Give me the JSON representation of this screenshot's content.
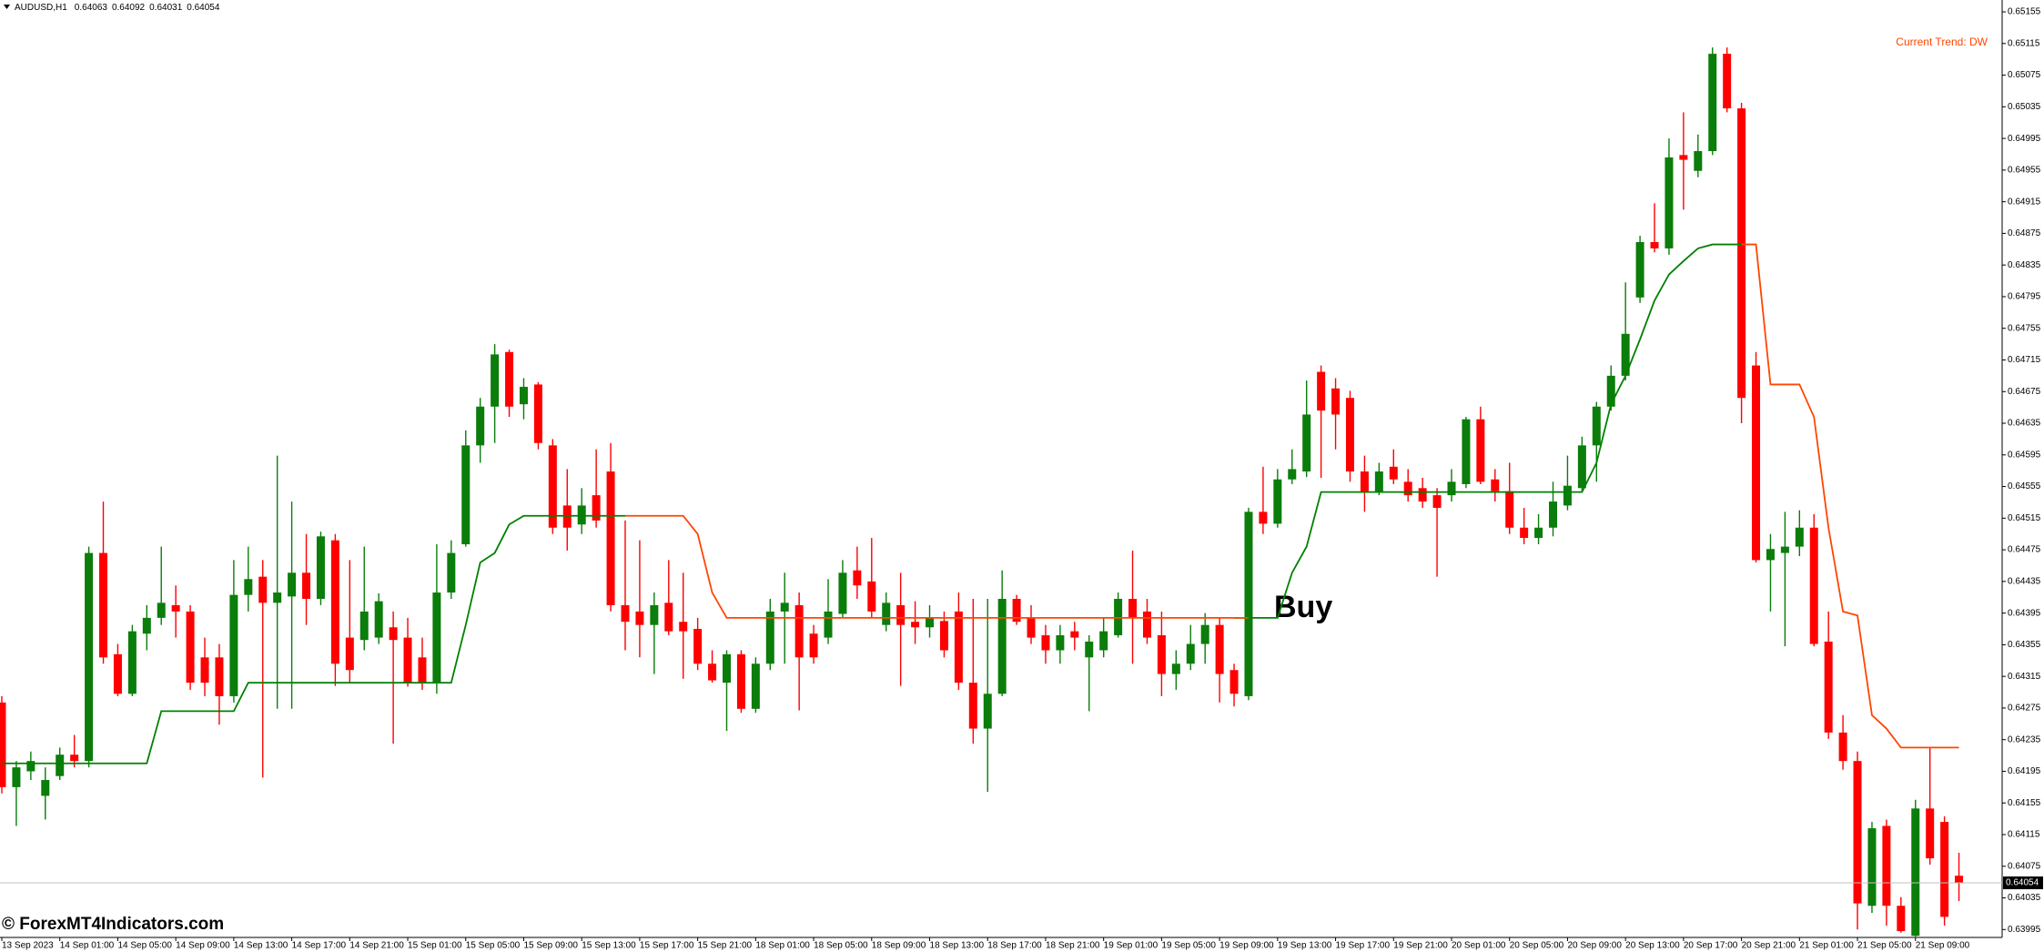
{
  "chart_data": {
    "type": "candlestick",
    "symbol": "AUDUSD,H1",
    "header_ohlc": [
      0.64063,
      0.64092,
      0.64031,
      0.64054
    ],
    "trend_annotation": "Current Trend: DW",
    "signal_annotation": "Buy",
    "watermark": "© ForexMT4Indicators.com",
    "current_price": 0.64054,
    "up_color": "#0a7d0a",
    "down_color": "#ff0000",
    "ylim": [
      0.63985,
      0.6517
    ],
    "yticks": [
      0.65155,
      0.65115,
      0.65075,
      0.65035,
      0.64995,
      0.64955,
      0.64915,
      0.64875,
      0.64835,
      0.64795,
      0.64755,
      0.64715,
      0.64675,
      0.64635,
      0.64595,
      0.64555,
      0.64515,
      0.64475,
      0.64435,
      0.64395,
      0.64355,
      0.64315,
      0.64275,
      0.64235,
      0.64195,
      0.64155,
      0.64115,
      0.64075,
      0.64035,
      0.63995
    ],
    "categories": [
      "13 Sep 2023",
      null,
      null,
      null,
      "14 Sep 01:00",
      null,
      null,
      null,
      "14 Sep 05:00",
      null,
      null,
      null,
      "14 Sep 09:00",
      null,
      null,
      null,
      "14 Sep 13:00",
      null,
      null,
      null,
      "14 Sep 17:00",
      null,
      null,
      null,
      "14 Sep 21:00",
      null,
      null,
      null,
      "15 Sep 01:00",
      null,
      null,
      null,
      "15 Sep 05:00",
      null,
      null,
      null,
      "15 Sep 09:00",
      null,
      null,
      null,
      "15 Sep 13:00",
      null,
      null,
      null,
      "15 Sep 17:00",
      null,
      null,
      null,
      "15 Sep 21:00",
      null,
      null,
      null,
      "18 Sep 01:00",
      null,
      null,
      null,
      "18 Sep 05:00",
      null,
      null,
      null,
      "18 Sep 09:00",
      null,
      null,
      null,
      "18 Sep 13:00",
      null,
      null,
      null,
      "18 Sep 17:00",
      null,
      null,
      null,
      "18 Sep 21:00",
      null,
      null,
      null,
      "19 Sep 01:00",
      null,
      null,
      null,
      "19 Sep 05:00",
      null,
      null,
      null,
      "19 Sep 09:00",
      null,
      null,
      null,
      "19 Sep 13:00",
      null,
      null,
      null,
      "19 Sep 17:00",
      null,
      null,
      null,
      "19 Sep 21:00",
      null,
      null,
      null,
      "20 Sep 01:00",
      null,
      null,
      null,
      "20 Sep 05:00",
      null,
      null,
      null,
      "20 Sep 09:00",
      null,
      null,
      null,
      "20 Sep 13:00",
      null,
      null,
      null,
      "20 Sep 17:00",
      null,
      null,
      null,
      "20 Sep 21:00",
      null,
      null,
      null,
      "21 Sep 01:00",
      null,
      null,
      null,
      "21 Sep 05:00",
      null,
      null,
      null,
      "21 Sep 09:00",
      null,
      null,
      null
    ],
    "ohlc": [
      [
        0.64282,
        0.6429,
        0.64167,
        0.64175
      ],
      [
        0.64175,
        0.64208,
        0.64126,
        0.642
      ],
      [
        0.64195,
        0.6422,
        0.64184,
        0.64208
      ],
      [
        0.64164,
        0.642,
        0.64134,
        0.64184
      ],
      [
        0.64189,
        0.64225,
        0.64184,
        0.64216
      ],
      [
        0.64216,
        0.64241,
        0.642,
        0.64208
      ],
      [
        0.64208,
        0.64479,
        0.642,
        0.64471
      ],
      [
        0.64471,
        0.64536,
        0.64331,
        0.64339
      ],
      [
        0.64343,
        0.64356,
        0.6429,
        0.64293
      ],
      [
        0.64293,
        0.6438,
        0.6429,
        0.64372
      ],
      [
        0.64369,
        0.64405,
        0.64348,
        0.64389
      ],
      [
        0.64389,
        0.64479,
        0.6438,
        0.64408
      ],
      [
        0.64405,
        0.6443,
        0.64364,
        0.64397
      ],
      [
        0.64397,
        0.64405,
        0.64298,
        0.64307
      ],
      [
        0.64339,
        0.64364,
        0.6429,
        0.64307
      ],
      [
        0.64339,
        0.64356,
        0.64254,
        0.6429
      ],
      [
        0.6429,
        0.64462,
        0.64282,
        0.64418
      ],
      [
        0.64418,
        0.64479,
        0.64397,
        0.64438
      ],
      [
        0.64441,
        0.64462,
        0.64187,
        0.64408
      ],
      [
        0.64408,
        0.64594,
        0.64274,
        0.64421
      ],
      [
        0.64416,
        0.64536,
        0.64274,
        0.64446
      ],
      [
        0.64446,
        0.64495,
        0.6438,
        0.64413
      ],
      [
        0.64413,
        0.64498,
        0.64405,
        0.64492
      ],
      [
        0.64487,
        0.64495,
        0.64303,
        0.64331
      ],
      [
        0.64364,
        0.64462,
        0.64307,
        0.64323
      ],
      [
        0.64361,
        0.64479,
        0.64348,
        0.64397
      ],
      [
        0.64364,
        0.6442,
        0.64356,
        0.6441
      ],
      [
        0.64377,
        0.64397,
        0.6423,
        0.64361
      ],
      [
        0.64364,
        0.64389,
        0.64302,
        0.64307
      ],
      [
        0.64339,
        0.64364,
        0.64298,
        0.64307
      ],
      [
        0.64307,
        0.64482,
        0.64293,
        0.64421
      ],
      [
        0.64421,
        0.64487,
        0.64413,
        0.64471
      ],
      [
        0.64482,
        0.64626,
        0.64479,
        0.64607
      ],
      [
        0.64607,
        0.64667,
        0.64585,
        0.64656
      ],
      [
        0.64656,
        0.64735,
        0.6461,
        0.64722
      ],
      [
        0.64725,
        0.64728,
        0.64643,
        0.64656
      ],
      [
        0.64659,
        0.64692,
        0.6464,
        0.64681
      ],
      [
        0.64684,
        0.64687,
        0.64602,
        0.6461
      ],
      [
        0.64607,
        0.64615,
        0.64495,
        0.64503
      ],
      [
        0.64531,
        0.64577,
        0.64474,
        0.64503
      ],
      [
        0.64507,
        0.64553,
        0.64495,
        0.64531
      ],
      [
        0.64544,
        0.64602,
        0.64503,
        0.64512
      ],
      [
        0.64574,
        0.6461,
        0.64397,
        0.64405
      ],
      [
        0.64405,
        0.64512,
        0.64348,
        0.64384
      ],
      [
        0.64397,
        0.64487,
        0.64339,
        0.6438
      ],
      [
        0.6438,
        0.64421,
        0.64318,
        0.64405
      ],
      [
        0.64408,
        0.64462,
        0.64367,
        0.64372
      ],
      [
        0.64384,
        0.64446,
        0.64312,
        0.64372
      ],
      [
        0.64375,
        0.64389,
        0.64323,
        0.64331
      ],
      [
        0.64331,
        0.64348,
        0.64307,
        0.6431
      ],
      [
        0.64307,
        0.64348,
        0.64246,
        0.64343
      ],
      [
        0.64343,
        0.64348,
        0.64269,
        0.64274
      ],
      [
        0.64274,
        0.64339,
        0.64269,
        0.64331
      ],
      [
        0.64331,
        0.64413,
        0.64323,
        0.64397
      ],
      [
        0.64397,
        0.64446,
        0.64331,
        0.64408
      ],
      [
        0.64405,
        0.64421,
        0.64272,
        0.64339
      ],
      [
        0.64369,
        0.6438,
        0.64331,
        0.64339
      ],
      [
        0.64364,
        0.64438,
        0.64356,
        0.64397
      ],
      [
        0.64394,
        0.64462,
        0.64389,
        0.64446
      ],
      [
        0.64449,
        0.64479,
        0.64413,
        0.6443
      ],
      [
        0.64435,
        0.6449,
        0.64389,
        0.64397
      ],
      [
        0.6438,
        0.64421,
        0.64372,
        0.64408
      ],
      [
        0.64405,
        0.64446,
        0.64303,
        0.6438
      ],
      [
        0.64384,
        0.6441,
        0.64356,
        0.64377
      ],
      [
        0.64377,
        0.64405,
        0.64364,
        0.64389
      ],
      [
        0.64385,
        0.64397,
        0.64339,
        0.64348
      ],
      [
        0.64397,
        0.64421,
        0.64298,
        0.64307
      ],
      [
        0.64307,
        0.64413,
        0.6423,
        0.64249
      ],
      [
        0.64249,
        0.64413,
        0.64169,
        0.64293
      ],
      [
        0.64293,
        0.64449,
        0.6429,
        0.64413
      ],
      [
        0.64413,
        0.64418,
        0.6438,
        0.64384
      ],
      [
        0.64389,
        0.64405,
        0.64356,
        0.64364
      ],
      [
        0.64367,
        0.6438,
        0.64331,
        0.64348
      ],
      [
        0.64348,
        0.6438,
        0.64331,
        0.64367
      ],
      [
        0.64372,
        0.64384,
        0.64348,
        0.64364
      ],
      [
        0.64339,
        0.64367,
        0.64271,
        0.64359
      ],
      [
        0.64348,
        0.64389,
        0.64339,
        0.64372
      ],
      [
        0.64367,
        0.64421,
        0.64364,
        0.64413
      ],
      [
        0.64413,
        0.64474,
        0.64331,
        0.64389
      ],
      [
        0.64397,
        0.64413,
        0.64356,
        0.64364
      ],
      [
        0.64367,
        0.64397,
        0.6429,
        0.64318
      ],
      [
        0.64318,
        0.64348,
        0.64298,
        0.64331
      ],
      [
        0.64331,
        0.6438,
        0.64323,
        0.64356
      ],
      [
        0.64356,
        0.64395,
        0.64331,
        0.6438
      ],
      [
        0.6438,
        0.64389,
        0.64282,
        0.64318
      ],
      [
        0.64323,
        0.64331,
        0.64277,
        0.64293
      ],
      [
        0.6429,
        0.64528,
        0.64285,
        0.64523
      ],
      [
        0.64523,
        0.6458,
        0.64495,
        0.64508
      ],
      [
        0.64508,
        0.64577,
        0.64503,
        0.64564
      ],
      [
        0.64564,
        0.64602,
        0.64558,
        0.64577
      ],
      [
        0.64574,
        0.64689,
        0.64567,
        0.64646
      ],
      [
        0.647,
        0.64708,
        0.64566,
        0.64651
      ],
      [
        0.64679,
        0.64692,
        0.64602,
        0.64646
      ],
      [
        0.64667,
        0.64676,
        0.64561,
        0.64574
      ],
      [
        0.64574,
        0.64594,
        0.64523,
        0.64548
      ],
      [
        0.64548,
        0.64585,
        0.64544,
        0.64574
      ],
      [
        0.6458,
        0.64602,
        0.64558,
        0.64564
      ],
      [
        0.64561,
        0.64577,
        0.64536,
        0.64544
      ],
      [
        0.64553,
        0.64566,
        0.64528,
        0.64536
      ],
      [
        0.64544,
        0.64553,
        0.64441,
        0.64528
      ],
      [
        0.64544,
        0.64577,
        0.64536,
        0.64561
      ],
      [
        0.64558,
        0.64643,
        0.64553,
        0.6464
      ],
      [
        0.6464,
        0.64656,
        0.64558,
        0.64561
      ],
      [
        0.64564,
        0.64577,
        0.64536,
        0.64549
      ],
      [
        0.64549,
        0.64585,
        0.64495,
        0.64503
      ],
      [
        0.64503,
        0.64528,
        0.64482,
        0.6449
      ],
      [
        0.6449,
        0.6452,
        0.64482,
        0.64503
      ],
      [
        0.64503,
        0.64561,
        0.64492,
        0.64536
      ],
      [
        0.64531,
        0.64594,
        0.64525,
        0.64556
      ],
      [
        0.64553,
        0.64618,
        0.64548,
        0.64607
      ],
      [
        0.64607,
        0.64662,
        0.64561,
        0.64656
      ],
      [
        0.64656,
        0.64708,
        0.64651,
        0.64695
      ],
      [
        0.64695,
        0.64813,
        0.64689,
        0.64748
      ],
      [
        0.64794,
        0.64872,
        0.64787,
        0.64864
      ],
      [
        0.64864,
        0.64913,
        0.64851,
        0.64856
      ],
      [
        0.64856,
        0.64995,
        0.64848,
        0.64971
      ],
      [
        0.64974,
        0.65028,
        0.64905,
        0.64968
      ],
      [
        0.64954,
        0.65,
        0.64946,
        0.64979
      ],
      [
        0.64979,
        0.6511,
        0.64974,
        0.65102
      ],
      [
        0.65102,
        0.6511,
        0.65028,
        0.65033
      ],
      [
        0.65033,
        0.6504,
        0.64635,
        0.64667
      ],
      [
        0.64708,
        0.64725,
        0.64459,
        0.64462
      ],
      [
        0.64462,
        0.64495,
        0.64397,
        0.64476
      ],
      [
        0.64471,
        0.64523,
        0.64353,
        0.64479
      ],
      [
        0.64479,
        0.64525,
        0.64467,
        0.64503
      ],
      [
        0.64503,
        0.6452,
        0.64353,
        0.64356
      ],
      [
        0.64359,
        0.64397,
        0.64236,
        0.64244
      ],
      [
        0.64244,
        0.64266,
        0.64197,
        0.64208
      ],
      [
        0.64208,
        0.6422,
        0.63995,
        0.64028
      ],
      [
        0.64025,
        0.64131,
        0.64016,
        0.64123
      ],
      [
        0.64126,
        0.64134,
        0.64,
        0.64025
      ],
      [
        0.64025,
        0.64036,
        0.63991,
        0.63993
      ],
      [
        0.63987,
        0.64159,
        0.63986,
        0.64148
      ],
      [
        0.64148,
        0.64225,
        0.64077,
        0.64085
      ],
      [
        0.64131,
        0.64138,
        0.64,
        0.64011
      ],
      [
        0.64063,
        0.64092,
        0.64031,
        0.64054
      ]
    ],
    "lines": [
      {
        "color": "#008000",
        "values": [
          0.64205,
          0.64205,
          0.64205,
          0.64205,
          0.64205,
          0.64205,
          0.64205,
          0.64205,
          0.64205,
          0.64205,
          0.64205,
          0.64271,
          0.64271,
          0.64271,
          0.64271,
          0.64271,
          0.64271,
          0.64307,
          0.64307,
          0.64307,
          0.64307,
          0.64307,
          0.64307,
          0.64307,
          0.64307,
          0.64307,
          0.64307,
          0.64307,
          0.64307,
          0.64307,
          0.64307,
          0.64307,
          0.6438,
          0.64459,
          0.64471,
          0.64507,
          0.64518,
          0.64518,
          0.64518,
          0.64518,
          0.64518,
          0.64518,
          0.64518,
          0.64518,
          null,
          null,
          null,
          null,
          null,
          null,
          null,
          null,
          null,
          null,
          null,
          null,
          null,
          null,
          null,
          null,
          null,
          null,
          null,
          null,
          null,
          null,
          null,
          null,
          null,
          null,
          null,
          null,
          null,
          null,
          null,
          null,
          null,
          null,
          null,
          null,
          null,
          null,
          null,
          null,
          null,
          0.64389,
          0.64389,
          0.64389,
          0.64389,
          0.64446,
          0.64479,
          0.64548,
          0.64548,
          0.64548,
          0.64548,
          0.64548,
          0.64548,
          0.64548,
          0.64548,
          0.64548,
          0.64548,
          0.64548,
          0.64548,
          0.64548,
          0.64548,
          0.64548,
          0.64548,
          0.64548,
          0.64548,
          0.64548,
          0.64585,
          0.64659,
          0.64695,
          0.64741,
          0.6479,
          0.64823,
          0.6484,
          0.64856,
          0.64861,
          0.64861,
          0.64861,
          null,
          null,
          null,
          null,
          null,
          null,
          null,
          null,
          null,
          null,
          null,
          null,
          null,
          null,
          null
        ]
      },
      {
        "color": "#ff4500",
        "values": [
          null,
          null,
          null,
          null,
          null,
          null,
          null,
          null,
          null,
          null,
          null,
          null,
          null,
          null,
          null,
          null,
          null,
          null,
          null,
          null,
          null,
          null,
          null,
          null,
          null,
          null,
          null,
          null,
          null,
          null,
          null,
          null,
          null,
          null,
          null,
          null,
          null,
          null,
          null,
          null,
          null,
          null,
          null,
          0.64518,
          0.64518,
          0.64518,
          0.64518,
          0.64518,
          0.64495,
          0.64421,
          0.64389,
          0.64389,
          0.64389,
          0.64389,
          0.64389,
          0.64389,
          0.64389,
          0.64389,
          0.64389,
          0.64389,
          0.64389,
          0.64389,
          0.64389,
          0.64389,
          0.64389,
          0.64389,
          0.64389,
          0.64389,
          0.64389,
          0.64389,
          0.64389,
          0.64389,
          0.64389,
          0.64389,
          0.64389,
          0.64389,
          0.64389,
          0.64389,
          0.64389,
          0.64389,
          0.64389,
          0.64389,
          0.64389,
          0.64389,
          0.64389,
          0.64389,
          0.64389,
          null,
          null,
          null,
          null,
          null,
          null,
          null,
          null,
          null,
          null,
          null,
          null,
          null,
          null,
          null,
          null,
          null,
          null,
          null,
          null,
          null,
          null,
          null,
          null,
          null,
          null,
          null,
          null,
          null,
          null,
          null,
          null,
          null,
          0.64861,
          0.64861,
          0.64684,
          0.64684,
          0.64684,
          0.64643,
          0.64503,
          0.64397,
          0.64392,
          0.64266,
          0.64249,
          0.64225,
          0.64225,
          0.64225,
          0.64225,
          0.64225
        ]
      }
    ]
  }
}
